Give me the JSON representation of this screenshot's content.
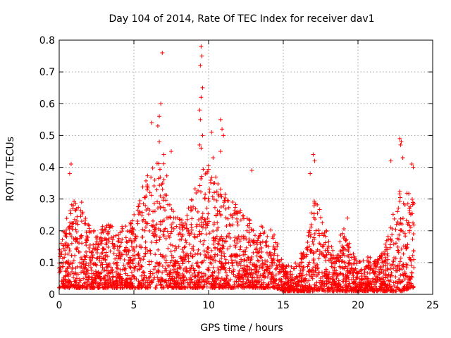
{
  "chart_data": {
    "type": "scatter",
    "title": "Day 104 of 2014, Rate Of TEC Index for receiver dav1",
    "xlabel": "GPS time / hours",
    "ylabel": "ROTI / TECUs",
    "xlim": [
      0,
      25
    ],
    "ylim": [
      0,
      0.8
    ],
    "xticks": [
      "0",
      "5",
      "10",
      "15",
      "20",
      "25"
    ],
    "yticks": [
      "0",
      "0.1",
      "0.2",
      "0.3",
      "0.4",
      "0.5",
      "0.6",
      "0.7",
      "0.8"
    ],
    "grid": true,
    "marker": "+",
    "series_color": "#ff0000",
    "series": [
      {
        "name": "dav1",
        "envelope": {
          "hours": [
            0,
            0.5,
            1,
            1.5,
            2,
            2.5,
            3,
            3.5,
            4,
            4.5,
            5,
            5.5,
            6,
            6.5,
            7,
            7.5,
            8,
            8.5,
            9,
            9.5,
            10,
            10.5,
            11,
            11.5,
            12,
            12.5,
            13,
            13.5,
            14,
            14.5,
            15,
            15.5,
            16,
            16.5,
            17,
            17.5,
            18,
            18.5,
            19,
            19.5,
            20,
            20.5,
            21,
            21.5,
            22,
            22.5,
            23,
            23.5
          ],
          "typical_max": [
            0.14,
            0.25,
            0.31,
            0.28,
            0.22,
            0.2,
            0.22,
            0.22,
            0.21,
            0.22,
            0.25,
            0.33,
            0.4,
            0.42,
            0.45,
            0.27,
            0.24,
            0.25,
            0.32,
            0.4,
            0.42,
            0.37,
            0.32,
            0.3,
            0.28,
            0.25,
            0.22,
            0.22,
            0.22,
            0.18,
            0.1,
            0.09,
            0.11,
            0.16,
            0.3,
            0.28,
            0.18,
            0.12,
            0.22,
            0.15,
            0.1,
            0.12,
            0.12,
            0.12,
            0.18,
            0.3,
            0.35,
            0.32
          ],
          "typical_min": [
            0.02,
            0.02,
            0.02,
            0.02,
            0.02,
            0.02,
            0.02,
            0.02,
            0.02,
            0.02,
            0.02,
            0.02,
            0.02,
            0.02,
            0.02,
            0.02,
            0.02,
            0.02,
            0.02,
            0.02,
            0.02,
            0.02,
            0.02,
            0.02,
            0.02,
            0.02,
            0.02,
            0.02,
            0.02,
            0.02,
            0.01,
            0.01,
            0.01,
            0.01,
            0.01,
            0.01,
            0.01,
            0.01,
            0.01,
            0.01,
            0.01,
            0.01,
            0.01,
            0.01,
            0.01,
            0.01,
            0.01,
            0.02
          ]
        },
        "notable_points": [
          [
            0.8,
            0.41
          ],
          [
            0.7,
            0.38
          ],
          [
            1.5,
            0.29
          ],
          [
            6.2,
            0.54
          ],
          [
            6.6,
            0.53
          ],
          [
            6.7,
            0.56
          ],
          [
            6.8,
            0.6
          ],
          [
            6.9,
            0.76
          ],
          [
            6.7,
            0.48
          ],
          [
            7.0,
            0.44
          ],
          [
            7.5,
            0.45
          ],
          [
            9.5,
            0.78
          ],
          [
            9.55,
            0.75
          ],
          [
            9.45,
            0.72
          ],
          [
            9.6,
            0.65
          ],
          [
            9.5,
            0.62
          ],
          [
            9.4,
            0.58
          ],
          [
            9.45,
            0.55
          ],
          [
            9.6,
            0.5
          ],
          [
            9.4,
            0.47
          ],
          [
            9.5,
            0.46
          ],
          [
            10.2,
            0.51
          ],
          [
            10.3,
            0.43
          ],
          [
            10.8,
            0.55
          ],
          [
            10.9,
            0.52
          ],
          [
            11.0,
            0.5
          ],
          [
            10.8,
            0.45
          ],
          [
            12.9,
            0.39
          ],
          [
            17.0,
            0.44
          ],
          [
            17.1,
            0.42
          ],
          [
            16.8,
            0.38
          ],
          [
            19.3,
            0.24
          ],
          [
            22.2,
            0.42
          ],
          [
            22.8,
            0.49
          ],
          [
            22.9,
            0.48
          ],
          [
            22.85,
            0.47
          ],
          [
            23.0,
            0.43
          ],
          [
            23.6,
            0.41
          ],
          [
            23.7,
            0.4
          ]
        ],
        "time_range": [
          0,
          23.75
        ]
      }
    ]
  }
}
